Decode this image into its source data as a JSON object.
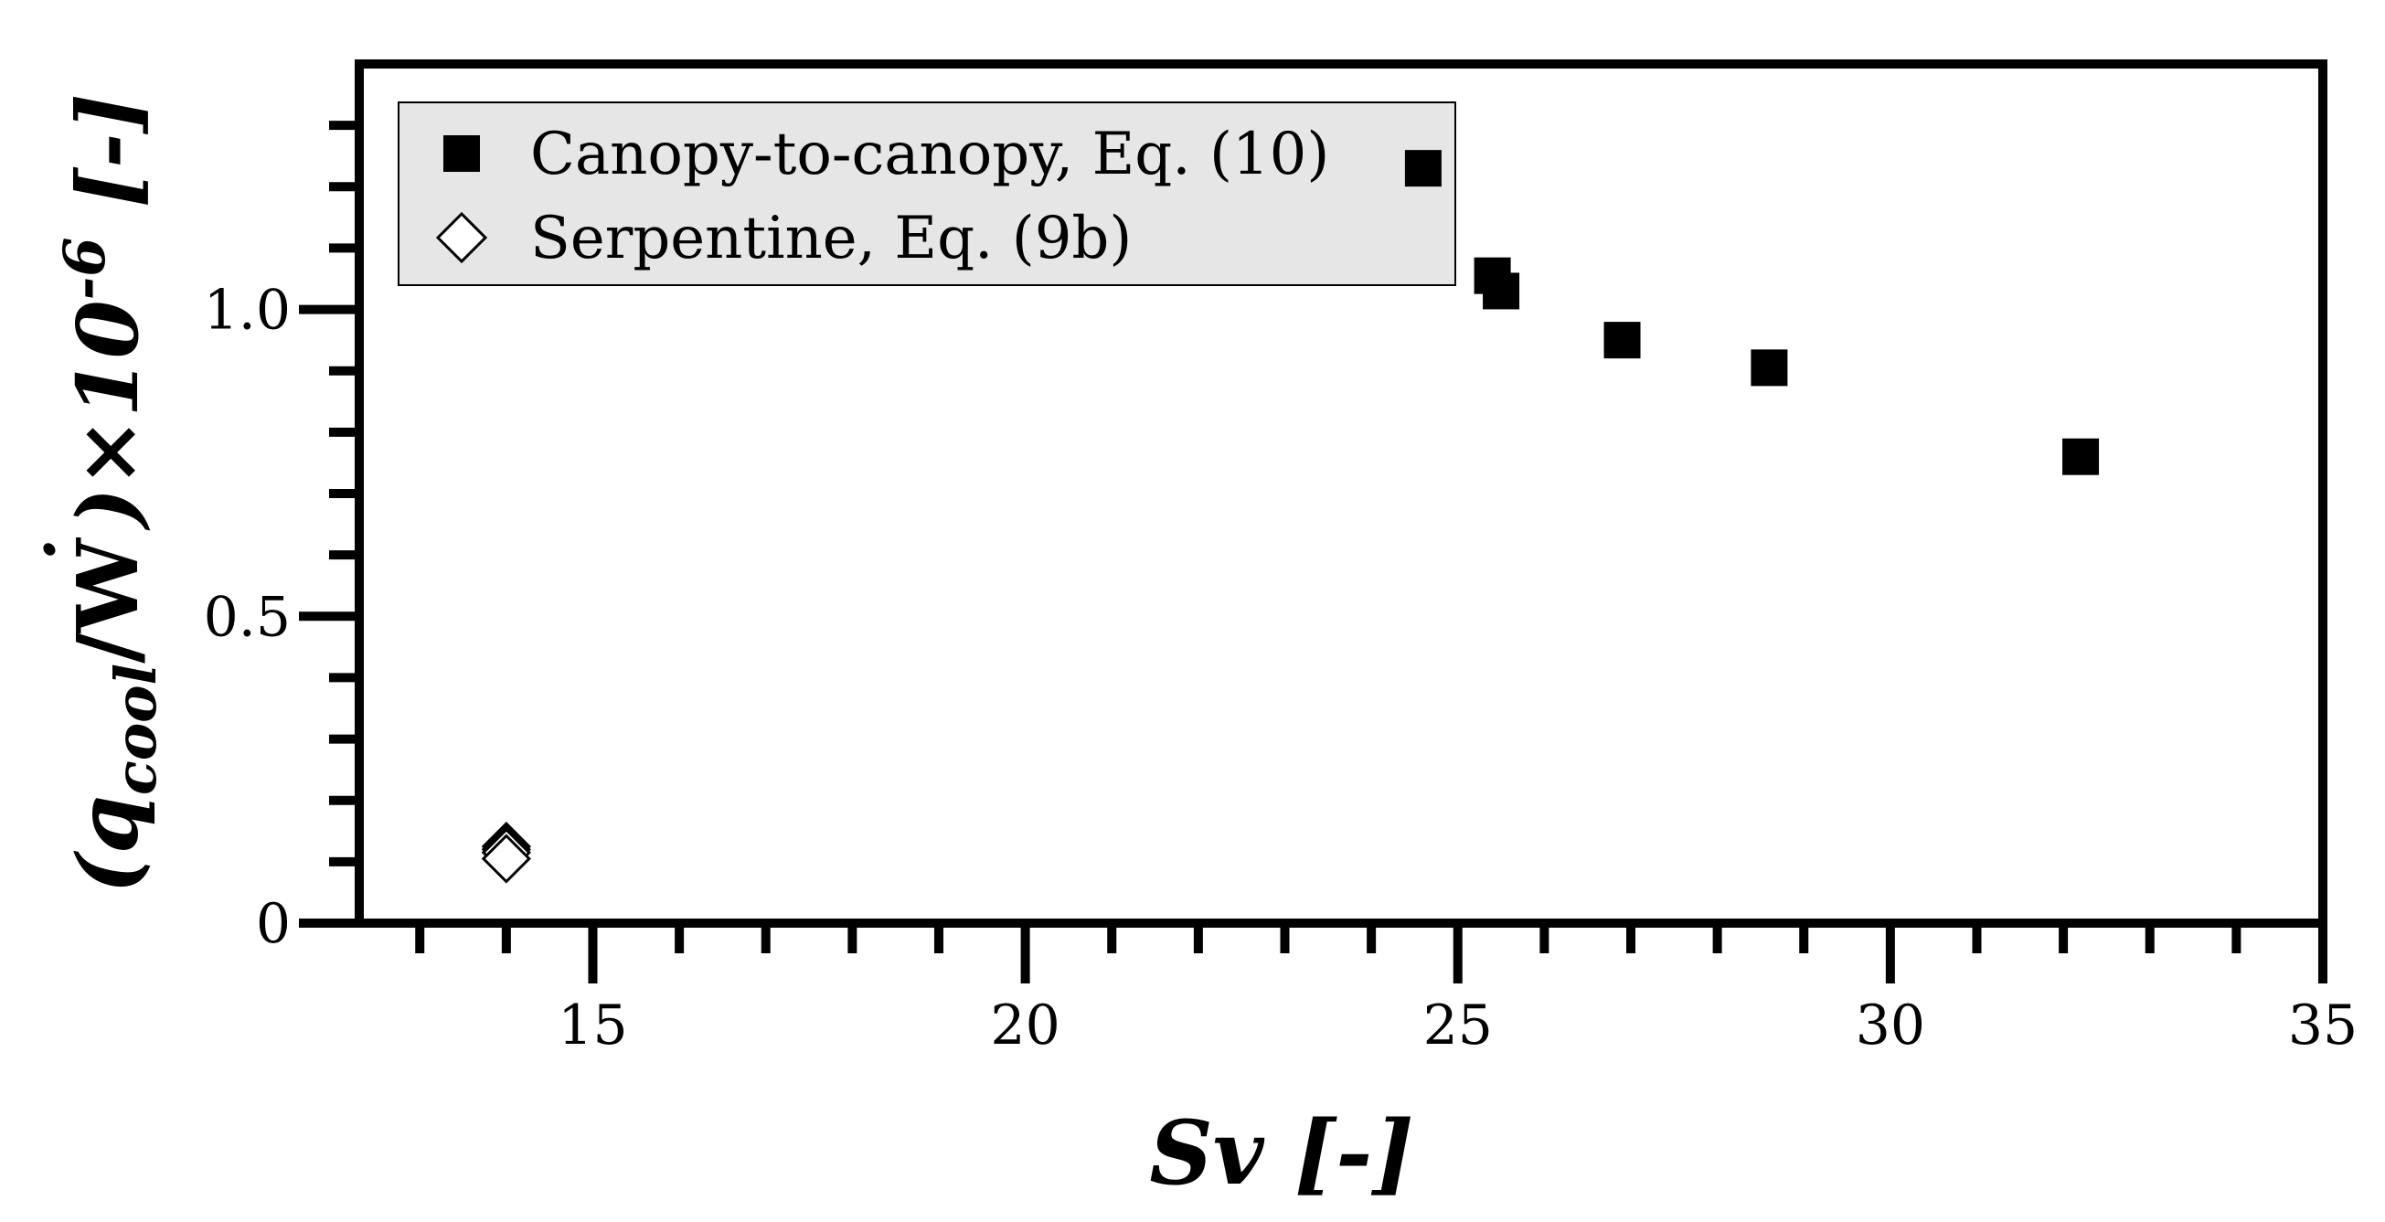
{
  "chart_data": {
    "type": "scatter",
    "xlabel": "Sv [-]",
    "ylabel": "(q_cool/Ẇ)×10^-6 [-]",
    "ylabel_parts": {
      "open": "(q",
      "sub": "cool",
      "mid": "/W",
      "dot": "˙",
      "close": ")×10",
      "sup": "-6",
      "unit": " [-]"
    },
    "xlim": [
      12.3,
      35
    ],
    "ylim": [
      0,
      1.4
    ],
    "x_ticks": [
      15,
      20,
      25,
      30,
      35
    ],
    "x_tick_labels": [
      "15",
      "20",
      "25",
      "30",
      "35"
    ],
    "y_ticks": [
      0,
      0.5,
      1.0
    ],
    "y_tick_labels": [
      "0",
      "0.5",
      "1.0"
    ],
    "grid": false,
    "legend_position": "top-left",
    "series": [
      {
        "name": "Canopy-to-canopy, Eq. (10)",
        "marker": "filled-square",
        "color": "#000000",
        "x": [
          24.6,
          25.4,
          25.5,
          26.9,
          28.6,
          32.2
        ],
        "y": [
          1.23,
          1.055,
          1.03,
          0.95,
          0.905,
          0.76
        ]
      },
      {
        "name": "Serpentine, Eq. (9b)",
        "marker": "open-diamond",
        "color": "#000000",
        "x": [
          14.0,
          14.0,
          14.0,
          14.0
        ],
        "y": [
          0.125,
          0.12,
          0.115,
          0.105
        ]
      }
    ]
  }
}
